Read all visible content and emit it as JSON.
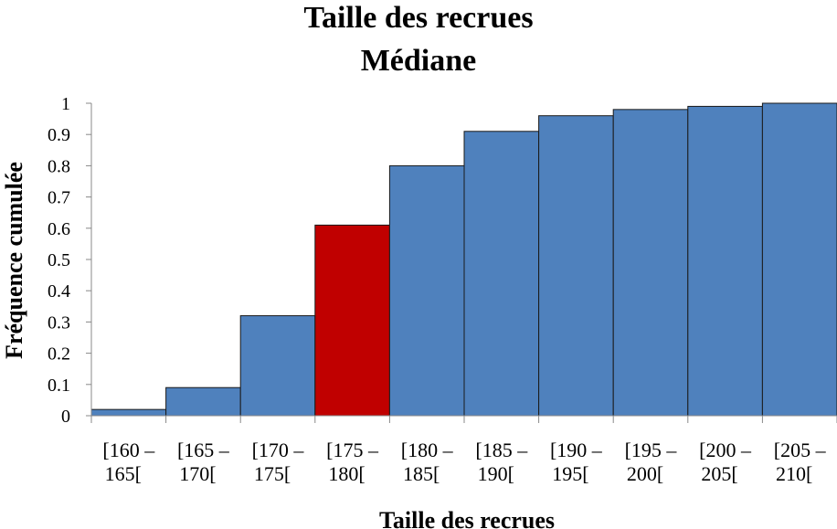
{
  "chart_data": {
    "type": "bar",
    "title": "Taille des recrues",
    "subtitle": "Médiane",
    "xlabel": "Taille des recrues",
    "ylabel": "Fréquence cumulée",
    "categories": [
      [
        "[160 –",
        "165["
      ],
      [
        "[165 –",
        "170["
      ],
      [
        "[170 –",
        "175["
      ],
      [
        "[175 –",
        "180["
      ],
      [
        "[180 –",
        "185["
      ],
      [
        "[185 –",
        "190["
      ],
      [
        "[190 –",
        "195["
      ],
      [
        "[195 –",
        "200["
      ],
      [
        "[200 –",
        "205["
      ],
      [
        "[205 –",
        "210["
      ]
    ],
    "values": [
      0.02,
      0.09,
      0.32,
      0.61,
      0.8,
      0.91,
      0.96,
      0.98,
      0.99,
      1.0
    ],
    "yticks": [
      "0",
      "0.1",
      "0.2",
      "0.3",
      "0.4",
      "0.5",
      "0.6",
      "0.7",
      "0.8",
      "0.9",
      "1"
    ],
    "ylim": [
      0,
      1
    ],
    "highlight_index": 3,
    "colors": {
      "bar": "#4F81BD",
      "highlight": "#C00000",
      "edge": "#1a1a1a"
    },
    "grid": false,
    "legend": "none"
  }
}
